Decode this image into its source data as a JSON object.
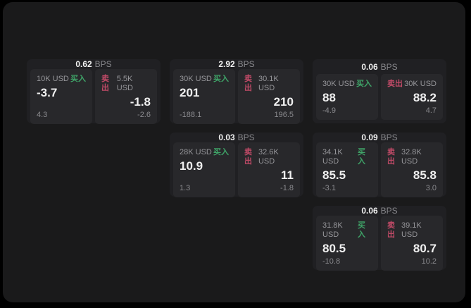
{
  "labels": {
    "buy": "买入",
    "sell": "卖出",
    "bps": "BPS"
  },
  "colors": {
    "background": "#000000",
    "window": "#1a1a1b",
    "card": "#202023",
    "panel": "#28282b",
    "buy_green": "#3fa468",
    "sell_red": "#c04a67",
    "value_white": "#f0f0f0",
    "label_gray": "#96969a"
  },
  "cards": [
    {
      "bps": "0.62",
      "col": "1",
      "row": "1",
      "buy": {
        "notional": "10K USD",
        "value": "-3.7",
        "delta": "4.3"
      },
      "sell": {
        "notional": "5.5K USD",
        "value": "-1.8",
        "delta": "-2.6"
      }
    },
    {
      "bps": "2.92",
      "col": "2",
      "row": "1",
      "buy": {
        "notional": "30K USD",
        "value": "201",
        "delta": "-188.1"
      },
      "sell": {
        "notional": "30.1K USD",
        "value": "210",
        "delta": "196.5"
      }
    },
    {
      "bps": "0.06",
      "col": "3",
      "row": "1",
      "buy": {
        "notional": "30K USD",
        "value": "88",
        "delta": "-4.9"
      },
      "sell": {
        "notional": "30K USD",
        "value": "88.2",
        "delta": "4.7"
      }
    },
    {
      "bps": "0.03",
      "col": "2",
      "row": "2",
      "buy": {
        "notional": "28K USD",
        "value": "10.9",
        "delta": "1.3"
      },
      "sell": {
        "notional": "32.6K USD",
        "value": "11",
        "delta": "-1.8"
      }
    },
    {
      "bps": "0.09",
      "col": "3",
      "row": "2",
      "buy": {
        "notional": "34.1K USD",
        "value": "85.5",
        "delta": "-3.1"
      },
      "sell": {
        "notional": "32.8K USD",
        "value": "85.8",
        "delta": "3.0"
      }
    },
    {
      "bps": "0.06",
      "col": "3",
      "row": "3",
      "buy": {
        "notional": "31.8K USD",
        "value": "80.5",
        "delta": "-10.8"
      },
      "sell": {
        "notional": "39.1K USD",
        "value": "80.7",
        "delta": "10.2"
      }
    }
  ]
}
